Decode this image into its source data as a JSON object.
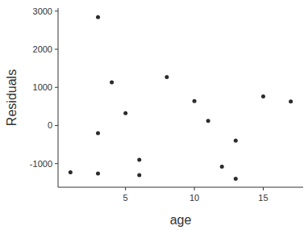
{
  "chart_data": {
    "type": "scatter",
    "x_label": "age",
    "y_label": "Residuals",
    "x": [
      1,
      3,
      3,
      3,
      4,
      5,
      6,
      6,
      8,
      10,
      11,
      12,
      13,
      13,
      15,
      17
    ],
    "values": [
      -1230,
      2840,
      -200,
      -1260,
      1130,
      320,
      -900,
      -1300,
      1270,
      640,
      120,
      -1080,
      -400,
      -1400,
      760,
      630
    ],
    "color": "#2b2b2b",
    "marker": "circle",
    "xlim": [
      0.1,
      17.9
    ],
    "xticks": [
      5,
      10,
      15
    ],
    "ylim": [
      -1620,
      3080
    ],
    "yticks": [
      -1000,
      0,
      1000,
      2000,
      3000
    ],
    "grid": false
  }
}
